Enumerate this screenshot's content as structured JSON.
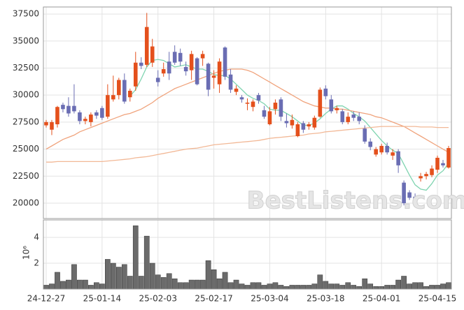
{
  "chart_data": {
    "type": "candlestick",
    "categories": [
      "24-12-27",
      null,
      null,
      null,
      null,
      null,
      null,
      null,
      null,
      null,
      "25-01-14",
      null,
      null,
      null,
      null,
      null,
      null,
      null,
      null,
      null,
      "25-02-03",
      null,
      null,
      null,
      null,
      null,
      null,
      null,
      null,
      null,
      "25-02-17",
      null,
      null,
      null,
      null,
      null,
      null,
      null,
      null,
      null,
      "25-03-04",
      null,
      null,
      null,
      null,
      null,
      null,
      null,
      null,
      null,
      "25-03-18",
      null,
      null,
      null,
      null,
      null,
      null,
      null,
      null,
      null,
      "25-04-01",
      null,
      null,
      null,
      null,
      null,
      null,
      null,
      null,
      null,
      "25-04-15",
      null,
      null
    ],
    "open": [
      27200,
      26800,
      27300,
      29100,
      29000,
      29000,
      28400,
      27600,
      27500,
      28400,
      28800,
      28000,
      29600,
      30000,
      31400,
      29800,
      30800,
      33000,
      32800,
      33000,
      31600,
      32000,
      33100,
      34000,
      33900,
      32600,
      32300,
      33400,
      33400,
      32900,
      31600,
      31000,
      34400,
      31900,
      30300,
      29800,
      29200,
      28900,
      30000,
      28600,
      27300,
      28700,
      29600,
      27600,
      27200,
      26200,
      27400,
      27100,
      27000,
      28000,
      30600,
      29600,
      28600,
      28500,
      27500,
      28200,
      28000,
      26900,
      25700,
      24500,
      24700,
      25300,
      24400,
      24800,
      21900,
      21000,
      20600,
      22300,
      22500,
      22600,
      23100,
      23700,
      23300
    ],
    "high": [
      27700,
      27700,
      29000,
      29300,
      29800,
      31000,
      28600,
      28000,
      28400,
      28600,
      29000,
      31000,
      31800,
      31600,
      32000,
      30600,
      34000,
      33500,
      37600,
      35200,
      32300,
      33000,
      34000,
      34600,
      34300,
      33100,
      34100,
      33500,
      34100,
      33000,
      32300,
      33400,
      34500,
      32400,
      30900,
      30000,
      29700,
      29600,
      30200,
      29000,
      28900,
      29600,
      29800,
      28300,
      28200,
      27500,
      27600,
      27500,
      28100,
      30700,
      30900,
      30000,
      29000,
      28700,
      28400,
      28500,
      28400,
      27200,
      26000,
      25200,
      25500,
      25600,
      25000,
      25000,
      22100,
      21200,
      20900,
      22800,
      22900,
      23500,
      24400,
      24000,
      25300
    ],
    "low": [
      27000,
      26300,
      27000,
      28400,
      28000,
      28300,
      27300,
      27300,
      27100,
      27800,
      27700,
      27800,
      29400,
      29600,
      29200,
      29400,
      30400,
      32400,
      32600,
      32600,
      30800,
      31700,
      31400,
      32800,
      32700,
      31800,
      31400,
      30900,
      32700,
      29900,
      30600,
      30200,
      31400,
      30200,
      30000,
      29300,
      28600,
      28500,
      29200,
      27800,
      27200,
      28200,
      27600,
      27000,
      26900,
      26100,
      26500,
      26800,
      26800,
      27900,
      29600,
      28300,
      28300,
      27300,
      27300,
      27600,
      27300,
      25500,
      24900,
      24300,
      24500,
      24500,
      24000,
      22800,
      19800,
      20300,
      19900,
      22000,
      22200,
      22400,
      22800,
      23300,
      23200
    ],
    "close": [
      27500,
      27500,
      28900,
      28700,
      28300,
      28500,
      27600,
      27800,
      28200,
      28100,
      27900,
      30000,
      30000,
      31400,
      29400,
      30400,
      33000,
      32700,
      36300,
      34500,
      31200,
      32400,
      32000,
      33000,
      33100,
      32200,
      33800,
      31000,
      33800,
      30500,
      31800,
      33100,
      31700,
      30500,
      30600,
      29600,
      29300,
      29400,
      29500,
      28000,
      28500,
      29300,
      28000,
      27400,
      27700,
      27300,
      26800,
      27300,
      27900,
      30500,
      29900,
      28500,
      28800,
      27500,
      28000,
      27900,
      27600,
      25700,
      25200,
      25000,
      25300,
      24700,
      24700,
      23500,
      20000,
      20500,
      20100,
      22500,
      22700,
      23200,
      24200,
      23500,
      25100
    ],
    "up_color": "#e4501c",
    "down_color": "#6a6db3",
    "ylim": [
      18580,
      38150
    ],
    "yticks": [
      20000,
      22500,
      25000,
      27500,
      30000,
      32500,
      35000,
      37500
    ],
    "grid": true,
    "lines": [
      {
        "color": "#7fd4b0",
        "values": [
          null,
          null,
          null,
          null,
          null,
          null,
          null,
          null,
          null,
          null,
          null,
          null,
          null,
          null,
          null,
          29900,
          30500,
          31500,
          32600,
          33200,
          33300,
          33200,
          32900,
          32600,
          32700,
          32800,
          32600,
          32400,
          32400,
          32200,
          31900,
          31800,
          31800,
          31500,
          31000,
          30500,
          30000,
          29700,
          29500,
          29200,
          28700,
          28600,
          28600,
          28300,
          28000,
          27600,
          27200,
          27200,
          27400,
          27800,
          28300,
          28700,
          29000,
          29000,
          28700,
          28300,
          28000,
          27600,
          27000,
          26400,
          25800,
          25300,
          24900,
          24600,
          23600,
          22600,
          21700,
          21300,
          21200,
          21800,
          22600,
          23000,
          23700
        ]
      },
      {
        "color": "#f0a37c",
        "values": [
          25000,
          25300,
          25600,
          25900,
          26100,
          26300,
          26600,
          26800,
          27000,
          27200,
          27400,
          27600,
          27800,
          28000,
          28200,
          28300,
          28500,
          28700,
          29000,
          29300,
          29700,
          30000,
          30300,
          30600,
          30800,
          31000,
          31200,
          31400,
          31600,
          31800,
          32000,
          32200,
          32300,
          32400,
          32400,
          32400,
          32300,
          32100,
          31800,
          31500,
          31200,
          30900,
          30600,
          30300,
          30000,
          29700,
          29400,
          29200,
          29000,
          28900,
          28800,
          28800,
          28700,
          28700,
          28600,
          28500,
          28400,
          28300,
          28200,
          28000,
          27900,
          27700,
          27500,
          27300,
          27100,
          26800,
          26500,
          26200,
          25900,
          25600,
          25300,
          25000,
          24700
        ]
      },
      {
        "color": "#f2b896",
        "values": [
          23800,
          23800,
          23850,
          23850,
          23850,
          23850,
          23850,
          23850,
          23850,
          23850,
          23850,
          23900,
          23950,
          24000,
          24050,
          24100,
          24200,
          24250,
          24300,
          24400,
          24500,
          24600,
          24700,
          24800,
          24900,
          25000,
          25050,
          25100,
          25200,
          25300,
          25400,
          25450,
          25500,
          25550,
          25600,
          25650,
          25700,
          25750,
          25800,
          25900,
          26000,
          26050,
          26100,
          26150,
          26200,
          26250,
          26300,
          26400,
          26450,
          26500,
          26600,
          26650,
          26700,
          26750,
          26800,
          26850,
          26900,
          26950,
          27000,
          27050,
          27100,
          27100,
          27100,
          27100,
          27100,
          27100,
          27100,
          27050,
          27050,
          27050,
          27000,
          27000,
          27000
        ]
      }
    ],
    "volume": {
      "values": [
        0.3,
        0.4,
        1.3,
        0.6,
        0.7,
        1.9,
        0.7,
        0.7,
        0.3,
        0.5,
        0.4,
        2.3,
        2.0,
        1.7,
        1.9,
        1.0,
        4.9,
        1.0,
        4.1,
        2.0,
        1.1,
        0.9,
        1.2,
        0.8,
        0.5,
        0.5,
        0.7,
        0.7,
        0.7,
        2.2,
        1.5,
        0.8,
        1.3,
        0.5,
        0.7,
        0.4,
        0.3,
        0.5,
        0.5,
        0.3,
        0.4,
        0.5,
        0.3,
        0.2,
        0.3,
        0.3,
        0.3,
        0.3,
        0.4,
        1.1,
        0.6,
        0.4,
        0.4,
        0.3,
        0.5,
        0.3,
        0.2,
        0.8,
        0.4,
        0.2,
        0.2,
        0.3,
        0.3,
        0.7,
        1.0,
        0.4,
        0.5,
        0.5,
        0.2,
        0.3,
        0.3,
        0.4,
        0.5
      ],
      "color": "#6b6b6b",
      "ylim": [
        0,
        5.35
      ],
      "yticks": [
        2,
        4
      ],
      "ylabel": "10⁶"
    },
    "watermark": "BestListens.com"
  }
}
